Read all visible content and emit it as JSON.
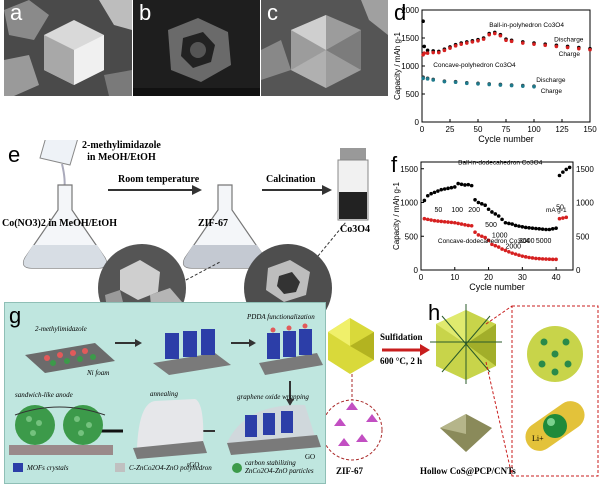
{
  "panels": {
    "a": {
      "label": "a"
    },
    "b": {
      "label": "b"
    },
    "c": {
      "label": "c"
    },
    "d": {
      "label": "d"
    },
    "e": {
      "label": "e",
      "reagent": "2-methylimidazole\nin MeOH/EtOH",
      "step1": "Room temperature",
      "step2": "Calcination",
      "start": "Co(NO3)2 in MeOH/EtOH",
      "intermediate": "ZIF-67",
      "product": "Co3O4"
    },
    "f": {
      "label": "f"
    },
    "g": {
      "label": "g",
      "steps": [
        "2-methylimidazole",
        "Ni foam",
        "PDDA functionalization",
        "annealing",
        "graphene oxide wrapping",
        "sandwich-like anode",
        "carbon stabilizing ZnCo2O4-ZnO particles"
      ],
      "legend": [
        "MOFs crystals",
        "C-ZnCo2O4-ZnO polyhedron",
        "carbon stabilizing ZnCo2O4-ZnO particles"
      ],
      "small": [
        "rGO",
        "GO"
      ]
    },
    "h": {
      "label": "h",
      "arrow_top": "Sulfidation",
      "arrow_bottom": "600 °C, 2 h",
      "left_caption": "ZIF-67",
      "right_caption": "Hollow CoS@PCP/CNTs",
      "ion": "Li+"
    }
  },
  "chart_data": [
    {
      "id": "d",
      "type": "scatter",
      "title": "",
      "xlabel": "Cycle number",
      "ylabel": "Capacity / mAh g-1",
      "xlim": [
        0,
        150
      ],
      "ylim": [
        0,
        2000
      ],
      "xticks": [
        0,
        25,
        50,
        75,
        100,
        125,
        150
      ],
      "yticks": [
        0,
        500,
        1000,
        1500,
        2000
      ],
      "annotations": [
        "Ball-in-polyhedron Co3O4",
        "Concave-polyhedron Co3O4",
        "Discharge",
        "Charge",
        "Discharge",
        "Charge"
      ],
      "series": [
        {
          "name": "Ball-in-polyhedron Co3O4 Discharge",
          "color": "#000000",
          "x": [
            1,
            2,
            5,
            10,
            15,
            20,
            25,
            30,
            35,
            40,
            45,
            50,
            55,
            60,
            65,
            70,
            75,
            80,
            90,
            100,
            110,
            120,
            130,
            140,
            150
          ],
          "y": [
            1800,
            1350,
            1280,
            1270,
            1260,
            1300,
            1340,
            1380,
            1410,
            1430,
            1450,
            1470,
            1500,
            1580,
            1600,
            1560,
            1480,
            1460,
            1430,
            1410,
            1390,
            1370,
            1350,
            1330,
            1310
          ]
        },
        {
          "name": "Ball-in-polyhedron Co3O4 Charge",
          "color": "#d62020",
          "x": [
            1,
            2,
            5,
            10,
            15,
            20,
            25,
            30,
            35,
            40,
            45,
            50,
            55,
            60,
            65,
            70,
            75,
            80,
            90,
            100,
            110,
            120,
            130,
            140,
            150
          ],
          "y": [
            1200,
            1230,
            1230,
            1240,
            1240,
            1280,
            1320,
            1360,
            1390,
            1410,
            1430,
            1450,
            1480,
            1560,
            1580,
            1540,
            1460,
            1440,
            1410,
            1390,
            1370,
            1350,
            1330,
            1310,
            1290
          ]
        },
        {
          "name": "Concave-polyhedron Co3O4 Discharge",
          "color": "#333333",
          "x": [
            1,
            5,
            10,
            20,
            30,
            40,
            50,
            60,
            70,
            80,
            90,
            100
          ],
          "y": [
            800,
            780,
            760,
            730,
            720,
            700,
            690,
            680,
            670,
            660,
            650,
            640
          ]
        },
        {
          "name": "Concave-polyhedron Co3O4 Charge",
          "color": "#1f7a8c",
          "x": [
            1,
            5,
            10,
            20,
            30,
            40,
            50,
            60,
            70,
            80,
            90,
            100
          ],
          "y": [
            780,
            770,
            750,
            720,
            710,
            690,
            680,
            670,
            660,
            650,
            640,
            630
          ]
        }
      ]
    },
    {
      "id": "f",
      "type": "scatter",
      "title": "",
      "xlabel": "Cycle number",
      "ylabel": "Capacity / mAh g-1",
      "xlim": [
        0,
        45
      ],
      "ylim": [
        0,
        1600
      ],
      "xticks": [
        0,
        10,
        20,
        30,
        40
      ],
      "yticks": [
        0,
        500,
        1000,
        1500
      ],
      "annotations": [
        "Ball-in-dodecahedron Co3O4",
        "Concave-dodecahedron Co3O4",
        "mA g-1"
      ],
      "rate_labels": [
        "50",
        "100",
        "200",
        "500",
        "1000",
        "2000",
        "3000",
        "5000",
        "50"
      ],
      "series": [
        {
          "name": "Ball-in-dodecahedron Co3O4",
          "color": "#000000",
          "x": [
            1,
            2,
            3,
            4,
            5,
            6,
            7,
            8,
            9,
            10,
            11,
            12,
            13,
            14,
            15,
            16,
            17,
            18,
            19,
            20,
            21,
            22,
            23,
            24,
            25,
            26,
            27,
            28,
            29,
            30,
            31,
            32,
            33,
            34,
            35,
            36,
            37,
            38,
            39,
            40,
            41,
            42,
            43,
            44
          ],
          "y": [
            1030,
            1100,
            1130,
            1150,
            1170,
            1190,
            1200,
            1210,
            1220,
            1230,
            1280,
            1270,
            1260,
            1265,
            1250,
            1040,
            1000,
            980,
            960,
            900,
            860,
            830,
            800,
            750,
            700,
            690,
            680,
            660,
            650,
            640,
            630,
            625,
            620,
            615,
            610,
            605,
            600,
            600,
            610,
            620,
            1400,
            1450,
            1490,
            1520
          ]
        },
        {
          "name": "Concave-dodecahedron Co3O4",
          "color": "#d62020",
          "x": [
            1,
            2,
            3,
            4,
            5,
            6,
            7,
            8,
            9,
            10,
            11,
            12,
            13,
            14,
            15,
            16,
            17,
            18,
            19,
            20,
            21,
            22,
            23,
            24,
            25,
            26,
            27,
            28,
            29,
            30,
            31,
            32,
            33,
            34,
            35,
            36,
            37,
            38,
            39,
            40,
            41,
            42,
            43
          ],
          "y": [
            760,
            750,
            740,
            730,
            725,
            720,
            715,
            710,
            705,
            700,
            690,
            680,
            670,
            660,
            655,
            560,
            520,
            500,
            480,
            440,
            380,
            360,
            340,
            310,
            290,
            270,
            250,
            235,
            220,
            205,
            195,
            185,
            178,
            172,
            168,
            165,
            162,
            160,
            158,
            158,
            760,
            770,
            780
          ]
        }
      ]
    }
  ]
}
